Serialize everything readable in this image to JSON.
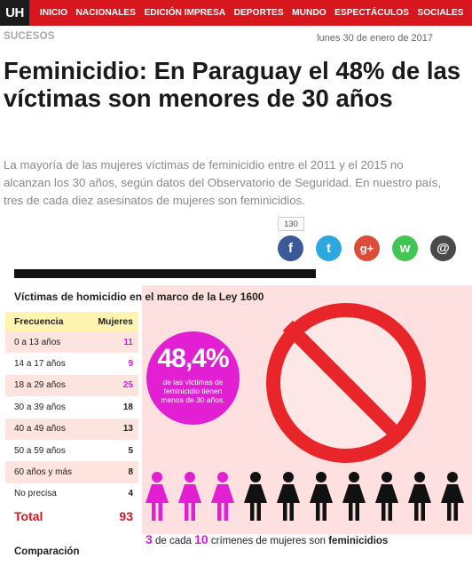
{
  "nav": {
    "logo": "UH",
    "items": [
      "INICIO",
      "NACIONALES",
      "EDICIÓN IMPRESA",
      "DEPORTES",
      "MUNDO",
      "ESPECTÁCULOS",
      "SOCIALES"
    ]
  },
  "article": {
    "section": "SUCESOS",
    "date": "lunes 30 de enero de 2017",
    "headline": "Feminicidio: En Paraguay el 48% de las víctimas son menores de 30 años",
    "lead": "La mayoría de las mujeres víctimas de feminicidio entre el 2011 y el 2015 no alcanzan los 30 años, según datos del Observatorio de Seguridad. En nuestro país, tres de cada diez asesinatos de mujeres son feminicidios."
  },
  "share": {
    "count": "130",
    "buttons": [
      {
        "name": "facebook",
        "glyph": "f",
        "color": "#3b5998"
      },
      {
        "name": "twitter",
        "glyph": "t",
        "color": "#2ca7e0"
      },
      {
        "name": "googleplus",
        "glyph": "g+",
        "color": "#dd4b39"
      },
      {
        "name": "whatsapp",
        "glyph": "w",
        "color": "#43c553"
      },
      {
        "name": "email",
        "glyph": "@",
        "color": "#4a4a4a"
      }
    ]
  },
  "infographic": {
    "title": "Víctimas de homicidio en el marco de la Ley 1600",
    "table_header": {
      "label": "Frecuencia",
      "value": "Mujeres"
    },
    "rows": [
      {
        "label": "0 a 13 años",
        "value": "11",
        "highlight": true
      },
      {
        "label": "14 a 17 años",
        "value": "9",
        "highlight": true
      },
      {
        "label": "18 a 29 años",
        "value": "25",
        "highlight": true
      },
      {
        "label": "30 a 39 años",
        "value": "18",
        "highlight": false
      },
      {
        "label": "40 a 49 años",
        "value": "13",
        "highlight": false
      },
      {
        "label": "50 a 59 años",
        "value": "5",
        "highlight": false
      },
      {
        "label": "60 años y más",
        "value": "8",
        "highlight": false
      },
      {
        "label": "No precisa",
        "value": "4",
        "highlight": false
      }
    ],
    "total": {
      "label": "Total",
      "value": "93"
    },
    "circle": {
      "percent": "48,4%",
      "text": "de las víctimas de feminicidio tienen menos de 30 años."
    },
    "caption": {
      "num1": "3",
      "text1": " de cada ",
      "num2": "10",
      "text2": " crímenes de mujeres son ",
      "bold": "feminicidios"
    },
    "next_section": "Comparación",
    "figures": {
      "highlighted": 3,
      "total": 10,
      "highlight_color": "#e21fd3",
      "base_color": "#111111"
    }
  }
}
